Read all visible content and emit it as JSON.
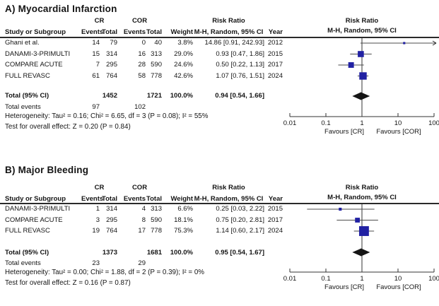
{
  "figure": {
    "panels": [
      {
        "title": "A) Myocardial Infarction",
        "header": {
          "group1": "CR",
          "group2": "COR",
          "effect": "Risk Ratio",
          "effect_method": "M-H, Random, 95% CI",
          "study": "Study or Subgroup",
          "events": "Events",
          "total": "Total",
          "weight": "Weight",
          "year": "Year"
        },
        "studies": [
          {
            "name": "Ghani et al.",
            "events1": "14",
            "total1": "79",
            "events2": "0",
            "total2": "40",
            "weight": "3.8%",
            "estimate": "14.86 [0.91, 242.93]",
            "year": "2012"
          },
          {
            "name": "DANAMI-3-PRIMULTI",
            "events1": "15",
            "total1": "314",
            "events2": "16",
            "total2": "313",
            "weight": "29.0%",
            "estimate": "0.93 [0.47, 1.86]",
            "year": "2015"
          },
          {
            "name": "COMPARE ACUTE",
            "events1": "7",
            "total1": "295",
            "events2": "28",
            "total2": "590",
            "weight": "24.6%",
            "estimate": "0.50 [0.22, 1.13]",
            "year": "2017"
          },
          {
            "name": "FULL REVASC",
            "events1": "61",
            "total1": "764",
            "events2": "58",
            "total2": "778",
            "weight": "42.6%",
            "estimate": "1.07 [0.76, 1.51]",
            "year": "2024"
          }
        ],
        "total_row": {
          "label": "Total (95% CI)",
          "total1": "1452",
          "total2": "1721",
          "weight": "100.0%",
          "estimate": "0.94 [0.54, 1.66]"
        },
        "total_events": {
          "label": "Total events",
          "events1": "97",
          "events2": "102"
        },
        "heterogeneity": "Heterogeneity: Tau² = 0.16; Chi² = 6.65, df = 3 (P = 0.08); I² = 55%",
        "overall_effect": "Test for overall effect: Z = 0.20 (P = 0.84)"
      },
      {
        "title": "B) Major Bleeding",
        "header": {
          "group1": "CR",
          "group2": "COR",
          "effect": "Risk Ratio",
          "effect_method": "M-H, Random, 95% CI",
          "study": "Study or Subgroup",
          "events": "Events",
          "total": "Total",
          "weight": "Weight",
          "year": "Year"
        },
        "studies": [
          {
            "name": "DANAMI-3-PRIMULTI",
            "events1": "1",
            "total1": "314",
            "events2": "4",
            "total2": "313",
            "weight": "6.6%",
            "estimate": "0.25 [0.03, 2.22]",
            "year": "2015"
          },
          {
            "name": "COMPARE ACUTE",
            "events1": "3",
            "total1": "295",
            "events2": "8",
            "total2": "590",
            "weight": "18.1%",
            "estimate": "0.75 [0.20, 2.81]",
            "year": "2017"
          },
          {
            "name": "FULL REVASC",
            "events1": "19",
            "total1": "764",
            "events2": "17",
            "total2": "778",
            "weight": "75.3%",
            "estimate": "1.14 [0.60, 2.17]",
            "year": "2024"
          }
        ],
        "total_row": {
          "label": "Total (95% CI)",
          "total1": "1373",
          "total2": "1681",
          "weight": "100.0%",
          "estimate": "0.95 [0.54, 1.67]"
        },
        "total_events": {
          "label": "Total events",
          "events1": "23",
          "events2": "29"
        },
        "heterogeneity": "Heterogeneity: Tau² = 0.00; Chi² = 1.88, df = 2 (P = 0.39); I² = 0%",
        "overall_effect": "Test for overall effect: Z = 0.16 (P = 0.87)"
      }
    ]
  },
  "chart_data": [
    {
      "type": "scatter",
      "subtype": "forest-plot",
      "title": "A) Myocardial Infarction",
      "effect_measure": "Risk Ratio, M-H, Random, 95% CI",
      "x_scale": "log10",
      "x_range": [
        0.01,
        100
      ],
      "x_ticks": [
        0.01,
        0.1,
        1,
        10,
        100
      ],
      "x_tick_labels": [
        "0.01",
        "0.1",
        "1",
        "10",
        "100"
      ],
      "favours_left": "Favours [CR]",
      "favours_right": "Favours [COR]",
      "marker_color": "#2121a3",
      "summary_color": "#151515",
      "points": [
        {
          "label": "Ghani et al.",
          "year": 2012,
          "rr": 14.86,
          "ci": [
            0.91,
            242.93
          ],
          "weight_pct": 3.8
        },
        {
          "label": "DANAMI-3-PRIMULTI",
          "year": 2015,
          "rr": 0.93,
          "ci": [
            0.47,
            1.86
          ],
          "weight_pct": 29.0
        },
        {
          "label": "COMPARE ACUTE",
          "year": 2017,
          "rr": 0.5,
          "ci": [
            0.22,
            1.13
          ],
          "weight_pct": 24.6
        },
        {
          "label": "FULL REVASC",
          "year": 2024,
          "rr": 1.07,
          "ci": [
            0.76,
            1.51
          ],
          "weight_pct": 42.6
        }
      ],
      "summary": {
        "label": "Total (95% CI)",
        "rr": 0.94,
        "ci": [
          0.54,
          1.66
        ]
      }
    },
    {
      "type": "scatter",
      "subtype": "forest-plot",
      "title": "B) Major Bleeding",
      "effect_measure": "Risk Ratio, M-H, Random, 95% CI",
      "x_scale": "log10",
      "x_range": [
        0.01,
        100
      ],
      "x_ticks": [
        0.01,
        0.1,
        1,
        10,
        100
      ],
      "x_tick_labels": [
        "0.01",
        "0.1",
        "1",
        "10",
        "100"
      ],
      "favours_left": "Favours [CR]",
      "favours_right": "Favours [COR]",
      "marker_color": "#2121a3",
      "summary_color": "#151515",
      "points": [
        {
          "label": "DANAMI-3-PRIMULTI",
          "year": 2015,
          "rr": 0.25,
          "ci": [
            0.03,
            2.22
          ],
          "weight_pct": 6.6
        },
        {
          "label": "COMPARE ACUTE",
          "year": 2017,
          "rr": 0.75,
          "ci": [
            0.2,
            2.81
          ],
          "weight_pct": 18.1
        },
        {
          "label": "FULL REVASC",
          "year": 2024,
          "rr": 1.14,
          "ci": [
            0.6,
            2.17
          ],
          "weight_pct": 75.3
        }
      ],
      "summary": {
        "label": "Total (95% CI)",
        "rr": 0.95,
        "ci": [
          0.54,
          1.67
        ]
      }
    }
  ]
}
